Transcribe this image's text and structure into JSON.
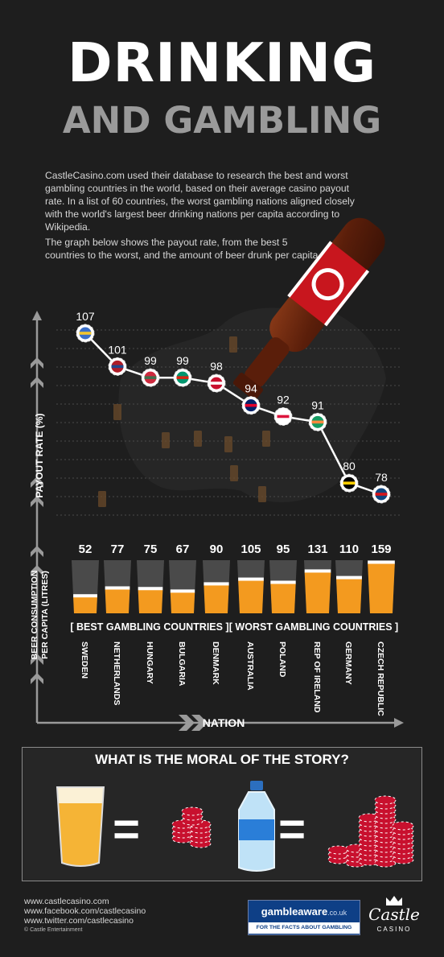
{
  "header": {
    "title_line1": "DRINKING",
    "title_line2": "AND GAMBLING",
    "intro_p1": "CastleCasino.com used their database to research the best and worst gambling countries in the world, based on their average casino payout rate. In a list of 60 countries, the worst gambling nations aligned closely with the world's largest beer drinking nations per capita according to Wikipedia.",
    "intro_p2": "The graph below shows the payout rate, from the best 5 countries to the worst, and the amount of beer drunk per capita."
  },
  "chart_data": {
    "type": "line",
    "categories": [
      "SWEDEN",
      "NETHERLANDS",
      "HUNGARY",
      "BULGARIA",
      "DENMARK",
      "AUSTRALIA",
      "POLAND",
      "REP OF IRELAND",
      "GERMANY",
      "CZECH REPUBLIC"
    ],
    "payout_rate": [
      107,
      101,
      99,
      99,
      98,
      94,
      92,
      91,
      80,
      78
    ],
    "beer_consumption": [
      52,
      77,
      75,
      67,
      90,
      105,
      95,
      131,
      110,
      159
    ],
    "ylabel_payout": "PAYOUT RATE (%)",
    "ylabel_beer_line1": "BEER CONSUMPTION",
    "ylabel_beer_line2": "PER CAPITA (LITRES)",
    "xlabel": "NATION",
    "group_best": "[ BEST GAMBLING COUNTRIES ]",
    "group_worst": "[ WORST GAMBLING COUNTRIES ]",
    "payout_range": [
      78,
      107
    ],
    "beer_max": 159,
    "colors": {
      "line": "#ffffff",
      "beer": "#f39a1f",
      "foam": "#ffffff",
      "glass": "#4a4a4a"
    }
  },
  "moral": {
    "title": "WHAT IS THE MORAL OF THE STORY?",
    "equals": "=",
    "beer_icon": "beer-glass-icon",
    "chips_icon": "casino-chips-icon",
    "water_icon": "water-bottle-icon",
    "chip_color": "#c8102e"
  },
  "footer": {
    "website": "www.castlecasino.com",
    "facebook": "www.facebook.com/castlecasino",
    "twitter": "www.twitter.com/castlecasino",
    "copyright": "© Castle Entertainment",
    "gambleaware_name": "gambleaware",
    "gambleaware_suffix": ".co.uk",
    "gambleaware_tagline": "FOR THE FACTS ABOUT GAMBLING",
    "logo_name": "Castle",
    "logo_sub": "CASINO"
  }
}
